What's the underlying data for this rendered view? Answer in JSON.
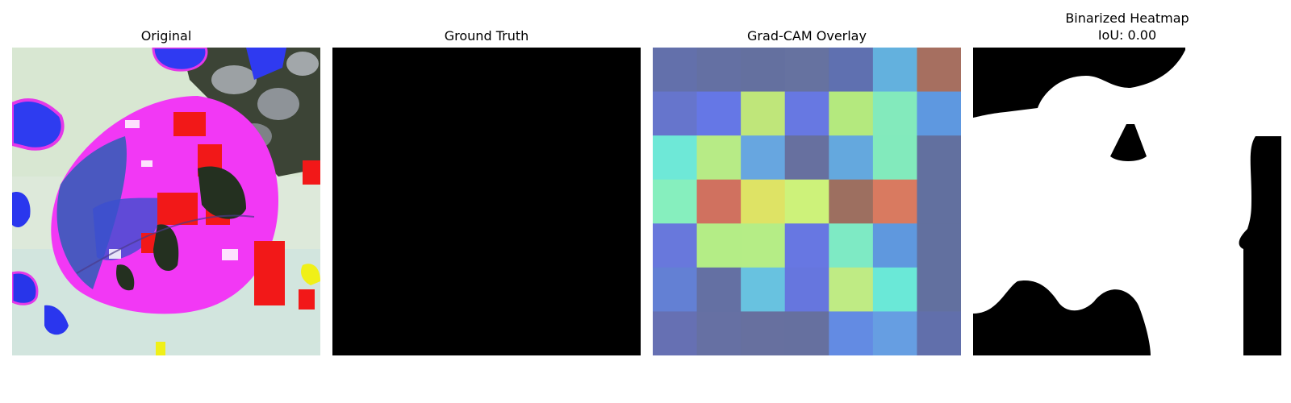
{
  "panels": {
    "original": {
      "title": "Original"
    },
    "ground_truth": {
      "title": "Ground Truth"
    },
    "gradcam": {
      "title": "Grad-CAM Overlay",
      "grid_colors": [
        [
          "#6370ab",
          "#6470a3",
          "#64709f",
          "#6672a0",
          "#5f70b0",
          "#63b1de",
          "#a66f60"
        ],
        [
          "#6675cc",
          "#6577e6",
          "#bfe67a",
          "#6778e2",
          "#b4e97e",
          "#83eabc",
          "#5e98e0"
        ],
        [
          "#6ee8d7",
          "#b7eb86",
          "#67a6e0",
          "#67709f",
          "#64a8de",
          "#82eabc",
          "#62709f"
        ],
        [
          "#86efbe",
          "#d0715f",
          "#dee365",
          "#cdf27a",
          "#9d6f60",
          "#d97a60",
          "#62709f"
        ],
        [
          "#6878dc",
          "#b4ed86",
          "#b5ed86",
          "#6777e2",
          "#7eeac4",
          "#5f98de",
          "#62709f"
        ],
        [
          "#6380d4",
          "#6470a3",
          "#68c2e0",
          "#6676de",
          "#bfeb84",
          "#6ae8d7",
          "#62709f"
        ],
        [
          "#6670b3",
          "#6670a3",
          "#67709f",
          "#66709f",
          "#638be3",
          "#669ee2",
          "#616fab"
        ]
      ]
    },
    "binarized": {
      "title": "Binarized Heatmap",
      "subtitle": "IoU: 0.00"
    }
  }
}
